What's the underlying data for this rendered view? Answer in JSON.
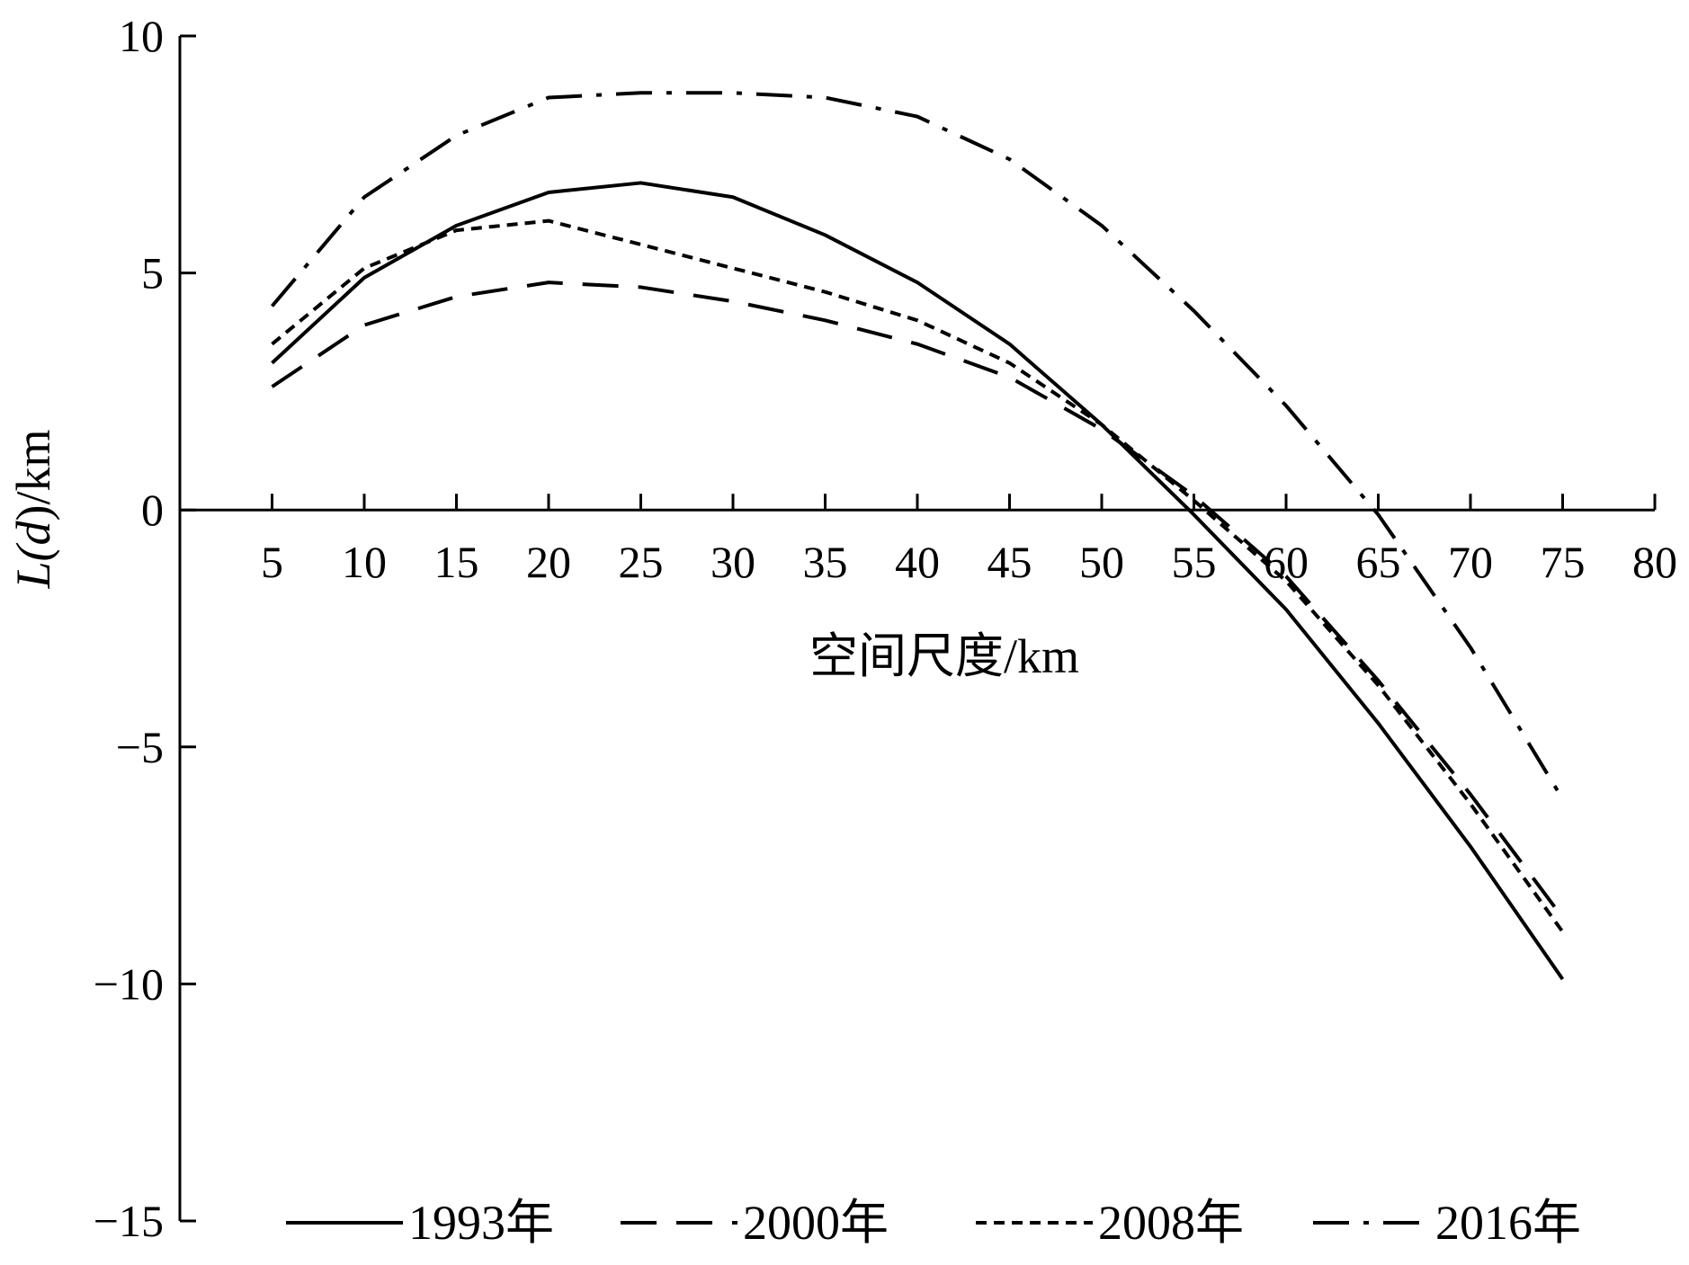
{
  "chart_data": {
    "type": "line",
    "title": "",
    "xlabel": "空间尺度/km",
    "ylabel": "L(d)/km",
    "ylabel_parts": {
      "prefix": "L(",
      "var": "d",
      "suffix": ")/km"
    },
    "x": [
      5,
      10,
      15,
      20,
      25,
      30,
      35,
      40,
      45,
      50,
      55,
      60,
      65,
      70,
      75
    ],
    "x_ticks": [
      "5",
      "10",
      "15",
      "20",
      "25",
      "30",
      "35",
      "40",
      "45",
      "50",
      "55",
      "60",
      "65",
      "70",
      "75",
      "80"
    ],
    "y_ticks": [
      "10",
      "5",
      "0",
      "−5",
      "−10",
      "−15"
    ],
    "xlim": [
      0,
      80
    ],
    "ylim": [
      -15,
      10
    ],
    "grid": false,
    "legend_position": "bottom",
    "series": [
      {
        "name": "1993年",
        "style": "solid",
        "values": [
          3.1,
          4.9,
          6.0,
          6.7,
          6.9,
          6.6,
          5.8,
          4.8,
          3.5,
          1.8,
          -0.1,
          -2.1,
          -4.5,
          -7.1,
          -9.9
        ]
      },
      {
        "name": "2000年",
        "style": "dash",
        "values": [
          2.6,
          3.9,
          4.5,
          4.8,
          4.7,
          4.4,
          4.0,
          3.5,
          2.8,
          1.7,
          0.3,
          -1.4,
          -3.6,
          -6.0,
          -8.6
        ]
      },
      {
        "name": "2008年",
        "style": "dot",
        "values": [
          3.5,
          5.1,
          5.9,
          6.1,
          5.6,
          5.1,
          4.6,
          4.0,
          3.1,
          1.8,
          0.2,
          -1.5,
          -3.7,
          -6.2,
          -8.9
        ]
      },
      {
        "name": "2016年",
        "style": "dashdot",
        "values": [
          4.3,
          6.6,
          7.9,
          8.7,
          8.8,
          8.8,
          8.7,
          8.3,
          7.4,
          6.0,
          4.2,
          2.2,
          -0.1,
          -2.9,
          -6.1
        ]
      }
    ]
  }
}
